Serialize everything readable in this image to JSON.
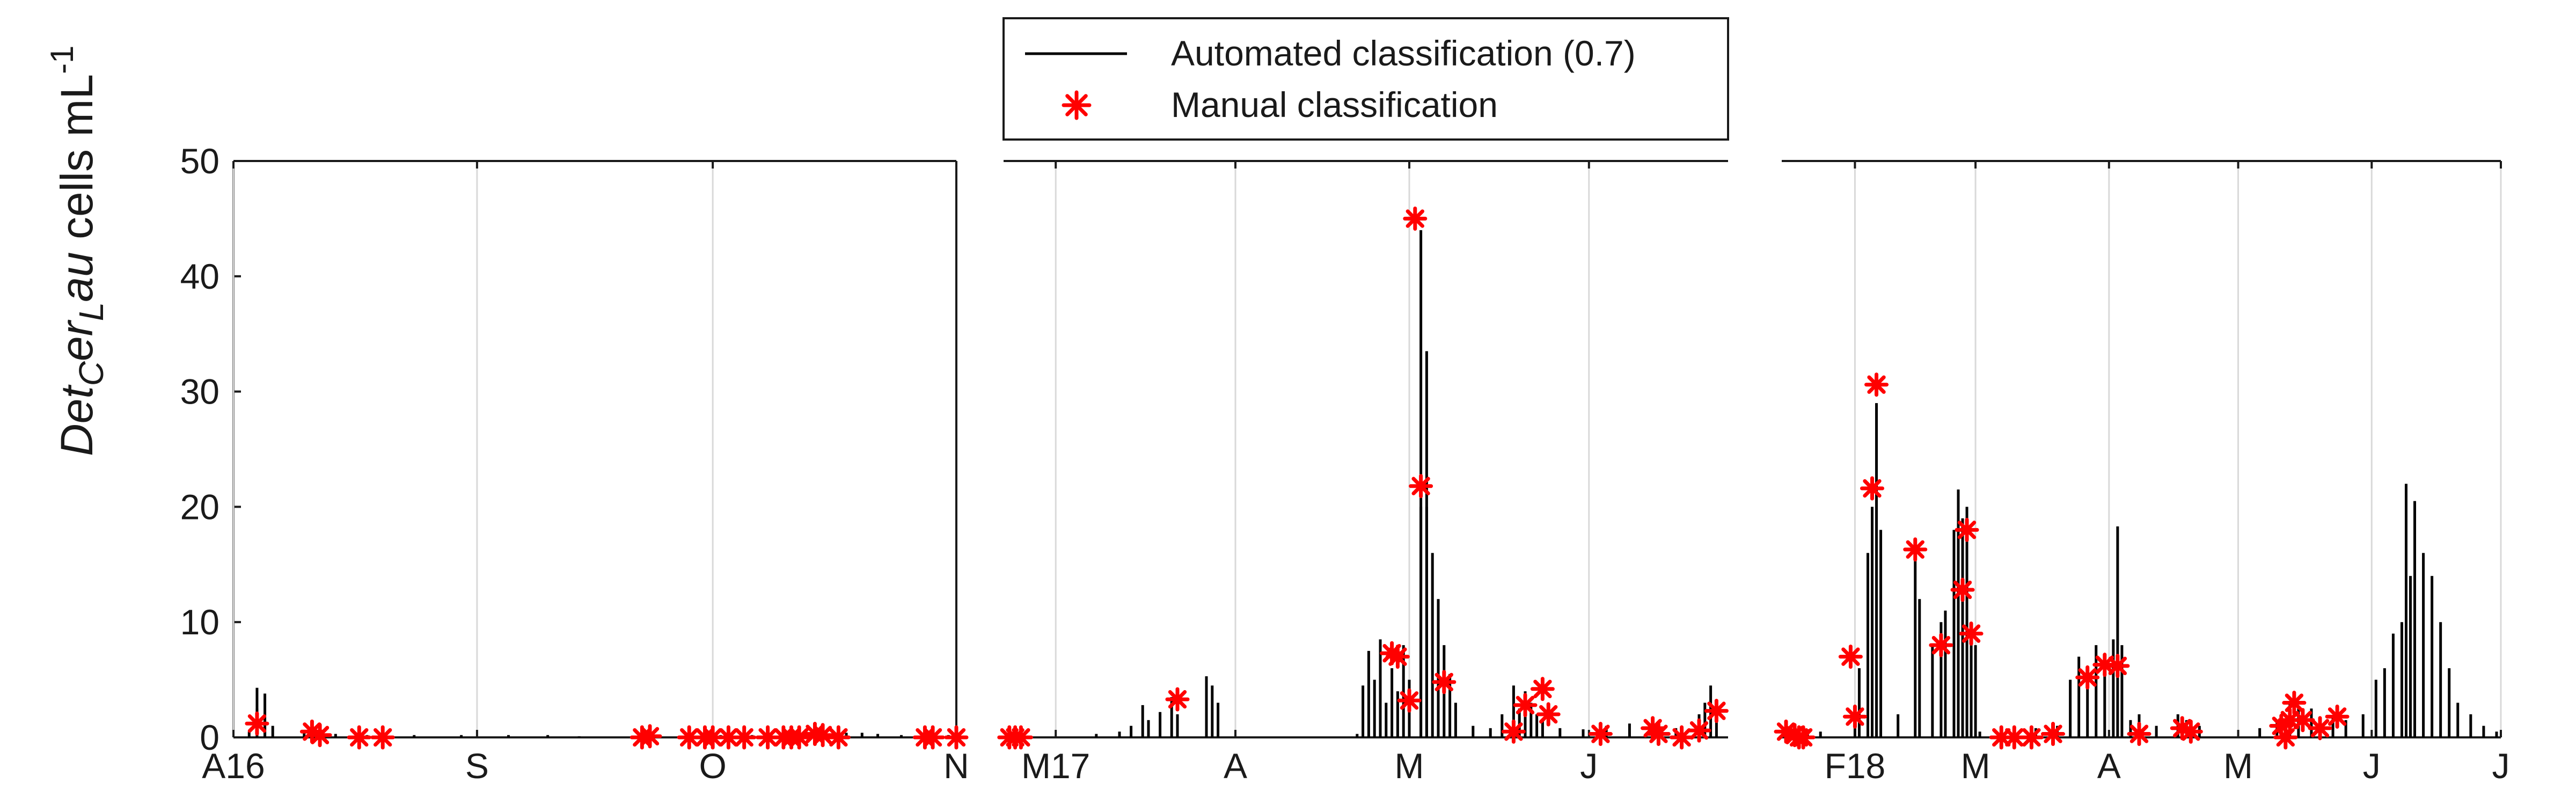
{
  "chart_data": {
    "type": "area",
    "ylabel": {
      "prefix": "Det",
      "sub1": "C",
      "middle": "er",
      "sub2": "L",
      "suffix": "au",
      "units": " cells mL",
      "exponent": "-1"
    },
    "ylim": [
      0,
      50
    ],
    "yticks": [
      "0",
      "10",
      "20",
      "30",
      "40",
      "50"
    ],
    "grid": "vertical",
    "legend": {
      "placement": "top-center",
      "entries": [
        {
          "label": "Automated classification (0.7)",
          "style": "line",
          "color": "#000000"
        },
        {
          "label": "Manual classification",
          "style": "star",
          "color": "#ff0000"
        }
      ]
    },
    "colors": {
      "automated": "#000000",
      "manual": "#ff0000",
      "grid": "#d9d9d9"
    },
    "panels": [
      {
        "xlim": [
          "2016-08-01",
          "2016-11-01"
        ],
        "xticks": [
          {
            "date": "2016-08-01",
            "label": "A16"
          },
          {
            "date": "2016-09-01",
            "label": "S"
          },
          {
            "date": "2016-10-01",
            "label": "O"
          },
          {
            "date": "2016-11-01",
            "label": "N"
          }
        ],
        "automated": [
          [
            "2016-08-03",
            0.5
          ],
          [
            "2016-08-04",
            4.3
          ],
          [
            "2016-08-04",
            2.5
          ],
          [
            "2016-08-05",
            3.8
          ],
          [
            "2016-08-05",
            1.5
          ],
          [
            "2016-08-06",
            1.0
          ],
          [
            "2016-08-10",
            0.5
          ],
          [
            "2016-08-12",
            0.6
          ],
          [
            "2016-08-14",
            0.3
          ],
          [
            "2016-08-18",
            0.2
          ],
          [
            "2016-08-24",
            0.2
          ],
          [
            "2016-08-30",
            0.2
          ],
          [
            "2016-09-05",
            0.2
          ],
          [
            "2016-09-10",
            0.2
          ],
          [
            "2016-09-14",
            0.1
          ],
          [
            "2016-09-22",
            0.5
          ],
          [
            "2016-09-23",
            0.3
          ],
          [
            "2016-10-02",
            0.2
          ],
          [
            "2016-10-06",
            0.2
          ],
          [
            "2016-10-10",
            0.2
          ],
          [
            "2016-10-16",
            0.3
          ],
          [
            "2016-10-18",
            0.4
          ],
          [
            "2016-10-20",
            0.4
          ],
          [
            "2016-10-22",
            0.3
          ],
          [
            "2016-10-25",
            0.2
          ],
          [
            "2016-10-29",
            0.2
          ],
          [
            "2016-10-31",
            0.2
          ]
        ],
        "manual": [
          [
            "2016-08-04",
            1.2
          ],
          [
            "2016-08-11",
            0.5
          ],
          [
            "2016-08-12",
            0.2
          ],
          [
            "2016-08-17",
            0.0
          ],
          [
            "2016-08-20",
            0.0
          ],
          [
            "2016-09-22",
            0.0
          ],
          [
            "2016-09-23",
            0.1
          ],
          [
            "2016-09-28",
            0.0
          ],
          [
            "2016-09-30",
            0.0
          ],
          [
            "2016-10-01",
            0.0
          ],
          [
            "2016-10-03",
            0.0
          ],
          [
            "2016-10-05",
            0.0
          ],
          [
            "2016-10-08",
            0.0
          ],
          [
            "2016-10-10",
            0.0
          ],
          [
            "2016-10-11",
            0.0
          ],
          [
            "2016-10-12",
            0.0
          ],
          [
            "2016-10-14",
            0.3
          ],
          [
            "2016-10-15",
            0.2
          ],
          [
            "2016-10-17",
            0.0
          ],
          [
            "2016-10-28",
            0.0
          ],
          [
            "2016-10-29",
            0.0
          ],
          [
            "2016-11-01",
            0.0
          ]
        ]
      },
      {
        "xlim": [
          "2017-02-20",
          "2017-06-25"
        ],
        "xticks": [
          {
            "date": "2017-03-01",
            "label": "M17"
          },
          {
            "date": "2017-04-01",
            "label": "A"
          },
          {
            "date": "2017-05-01",
            "label": "M"
          },
          {
            "date": "2017-06-01",
            "label": "J"
          }
        ],
        "automated": [
          [
            "2017-03-08",
            0.3
          ],
          [
            "2017-03-12",
            0.5
          ],
          [
            "2017-03-14",
            1.0
          ],
          [
            "2017-03-16",
            2.8
          ],
          [
            "2017-03-17",
            1.5
          ],
          [
            "2017-03-19",
            2.2
          ],
          [
            "2017-03-21",
            3.5
          ],
          [
            "2017-03-22",
            2.0
          ],
          [
            "2017-03-27",
            5.3
          ],
          [
            "2017-03-28",
            4.5
          ],
          [
            "2017-03-29",
            3.0
          ],
          [
            "2017-04-22",
            0.3
          ],
          [
            "2017-04-23",
            4.5
          ],
          [
            "2017-04-24",
            7.5
          ],
          [
            "2017-04-25",
            5.0
          ],
          [
            "2017-04-26",
            8.5
          ],
          [
            "2017-04-27",
            3.0
          ],
          [
            "2017-04-28",
            6.0
          ],
          [
            "2017-04-29",
            4.0
          ],
          [
            "2017-04-30",
            8.0
          ],
          [
            "2017-05-01",
            5.0
          ],
          [
            "2017-05-03",
            44.0
          ],
          [
            "2017-05-03",
            20.0
          ],
          [
            "2017-05-04",
            33.5
          ],
          [
            "2017-05-04",
            20.0
          ],
          [
            "2017-05-05",
            16.0
          ],
          [
            "2017-05-06",
            12.0
          ],
          [
            "2017-05-07",
            8.0
          ],
          [
            "2017-05-08",
            5.5
          ],
          [
            "2017-05-09",
            3.0
          ],
          [
            "2017-05-12",
            1.0
          ],
          [
            "2017-05-15",
            0.8
          ],
          [
            "2017-05-17",
            2.0
          ],
          [
            "2017-05-19",
            4.5
          ],
          [
            "2017-05-20",
            2.5
          ],
          [
            "2017-05-21",
            4.0
          ],
          [
            "2017-05-22",
            3.0
          ],
          [
            "2017-05-23",
            2.0
          ],
          [
            "2017-05-24",
            1.5
          ],
          [
            "2017-05-27",
            0.8
          ],
          [
            "2017-05-31",
            0.7
          ],
          [
            "2017-06-04",
            1.0
          ],
          [
            "2017-06-08",
            1.2
          ],
          [
            "2017-06-12",
            1.0
          ],
          [
            "2017-06-16",
            0.8
          ],
          [
            "2017-06-20",
            2.0
          ],
          [
            "2017-06-21",
            3.0
          ],
          [
            "2017-06-22",
            4.5
          ],
          [
            "2017-06-23",
            2.0
          ]
        ],
        "manual": [
          [
            "2017-02-21",
            0.0
          ],
          [
            "2017-02-22",
            0.0
          ],
          [
            "2017-02-23",
            0.0
          ],
          [
            "2017-03-22",
            3.3
          ],
          [
            "2017-04-28",
            7.3
          ],
          [
            "2017-04-29",
            7.0
          ],
          [
            "2017-05-01",
            3.2
          ],
          [
            "2017-05-02",
            45.0
          ],
          [
            "2017-05-03",
            21.8
          ],
          [
            "2017-05-07",
            4.8
          ],
          [
            "2017-05-19",
            0.5
          ],
          [
            "2017-05-21",
            2.8
          ],
          [
            "2017-05-24",
            4.2
          ],
          [
            "2017-05-25",
            2.0
          ],
          [
            "2017-06-03",
            0.3
          ],
          [
            "2017-06-12",
            0.8
          ],
          [
            "2017-06-13",
            0.3
          ],
          [
            "2017-06-17",
            0.0
          ],
          [
            "2017-06-20",
            0.6
          ],
          [
            "2017-06-23",
            2.3
          ]
        ]
      },
      {
        "xlim": [
          "2018-01-15",
          "2018-07-01"
        ],
        "xticks": [
          {
            "date": "2018-02-01",
            "label": "F18"
          },
          {
            "date": "2018-03-01",
            "label": "M"
          },
          {
            "date": "2018-04-01",
            "label": "A"
          },
          {
            "date": "2018-05-01",
            "label": "M"
          },
          {
            "date": "2018-06-01",
            "label": "J"
          },
          {
            "date": "2018-07-01",
            "label": "J"
          }
        ],
        "automated": [
          [
            "2018-01-16",
            0.6
          ],
          [
            "2018-01-18",
            0.8
          ],
          [
            "2018-01-21",
            0.7
          ],
          [
            "2018-01-24",
            0.5
          ],
          [
            "2018-02-01",
            2.0
          ],
          [
            "2018-02-02",
            6.0
          ],
          [
            "2018-02-04",
            16.0
          ],
          [
            "2018-02-05",
            20.0
          ],
          [
            "2018-02-06",
            29.0
          ],
          [
            "2018-02-07",
            18.0
          ],
          [
            "2018-02-11",
            2.0
          ],
          [
            "2018-02-15",
            16.5
          ],
          [
            "2018-02-16",
            12.0
          ],
          [
            "2018-02-19",
            8.0
          ],
          [
            "2018-02-21",
            10.0
          ],
          [
            "2018-02-22",
            11.0
          ],
          [
            "2018-02-24",
            18.0
          ],
          [
            "2018-02-25",
            21.5
          ],
          [
            "2018-02-26",
            19.0
          ],
          [
            "2018-02-27",
            20.0
          ],
          [
            "2018-02-28",
            10.0
          ],
          [
            "2018-03-01",
            8.0
          ],
          [
            "2018-03-02",
            0.5
          ],
          [
            "2018-03-10",
            0.5
          ],
          [
            "2018-03-15",
            0.8
          ],
          [
            "2018-03-20",
            1.0
          ],
          [
            "2018-03-23",
            5.0
          ],
          [
            "2018-03-25",
            7.0
          ],
          [
            "2018-03-27",
            6.0
          ],
          [
            "2018-03-29",
            8.0
          ],
          [
            "2018-03-31",
            7.0
          ],
          [
            "2018-04-02",
            8.5
          ],
          [
            "2018-04-03",
            18.3
          ],
          [
            "2018-04-04",
            8.0
          ],
          [
            "2018-04-06",
            1.5
          ],
          [
            "2018-04-08",
            2.0
          ],
          [
            "2018-04-12",
            1.0
          ],
          [
            "2018-04-17",
            2.0
          ],
          [
            "2018-04-19",
            1.5
          ],
          [
            "2018-04-22",
            1.0
          ],
          [
            "2018-05-06",
            0.8
          ],
          [
            "2018-05-10",
            1.5
          ],
          [
            "2018-05-13",
            3.0
          ],
          [
            "2018-05-15",
            2.5
          ],
          [
            "2018-05-18",
            2.5
          ],
          [
            "2018-05-20",
            1.5
          ],
          [
            "2018-05-23",
            1.8
          ],
          [
            "2018-05-26",
            1.5
          ],
          [
            "2018-05-30",
            2.0
          ],
          [
            "2018-06-02",
            5.0
          ],
          [
            "2018-06-04",
            6.0
          ],
          [
            "2018-06-06",
            9.0
          ],
          [
            "2018-06-08",
            10.0
          ],
          [
            "2018-06-09",
            22.0
          ],
          [
            "2018-06-10",
            14.0
          ],
          [
            "2018-06-11",
            20.5
          ],
          [
            "2018-06-13",
            16.0
          ],
          [
            "2018-06-15",
            14.0
          ],
          [
            "2018-06-17",
            10.0
          ],
          [
            "2018-06-19",
            6.0
          ],
          [
            "2018-06-21",
            3.0
          ],
          [
            "2018-06-24",
            2.0
          ],
          [
            "2018-06-27",
            1.0
          ],
          [
            "2018-06-30",
            0.5
          ]
        ],
        "manual": [
          [
            "2018-01-16",
            0.5
          ],
          [
            "2018-01-18",
            0.2
          ],
          [
            "2018-01-19",
            0.0
          ],
          [
            "2018-01-20",
            0.0
          ],
          [
            "2018-01-31",
            7.0
          ],
          [
            "2018-02-01",
            1.8
          ],
          [
            "2018-02-05",
            21.6
          ],
          [
            "2018-02-06",
            30.6
          ],
          [
            "2018-02-15",
            16.3
          ],
          [
            "2018-02-21",
            8.0
          ],
          [
            "2018-02-26",
            12.8
          ],
          [
            "2018-02-27",
            18.0
          ],
          [
            "2018-02-28",
            9.0
          ],
          [
            "2018-03-07",
            0.0
          ],
          [
            "2018-03-10",
            0.0
          ],
          [
            "2018-03-14",
            0.0
          ],
          [
            "2018-03-19",
            0.3
          ],
          [
            "2018-03-27",
            5.2
          ],
          [
            "2018-03-31",
            6.3
          ],
          [
            "2018-04-03",
            6.2
          ],
          [
            "2018-04-08",
            0.3
          ],
          [
            "2018-04-18",
            0.8
          ],
          [
            "2018-04-20",
            0.5
          ],
          [
            "2018-05-11",
            1.0
          ],
          [
            "2018-05-12",
            0.0
          ],
          [
            "2018-05-13",
            1.5
          ],
          [
            "2018-05-14",
            3.0
          ],
          [
            "2018-05-16",
            1.5
          ],
          [
            "2018-05-20",
            0.8
          ],
          [
            "2018-05-24",
            1.8
          ]
        ]
      }
    ]
  }
}
